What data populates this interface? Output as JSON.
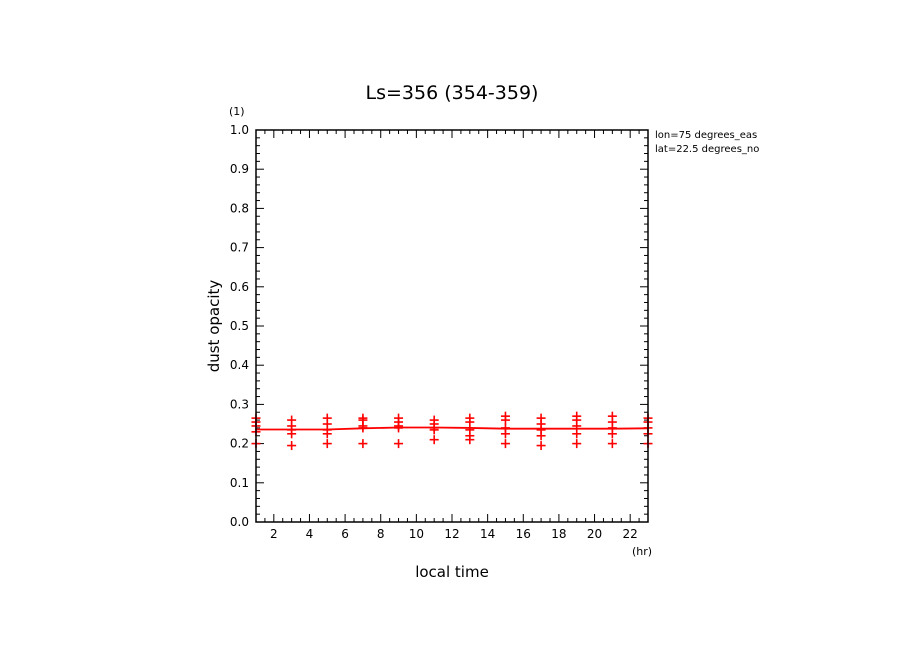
{
  "chart_data": {
    "type": "scatter",
    "title": "Ls=356 (354-359)",
    "xlabel": "local time",
    "ylabel": "dust opacity",
    "x_unit": "(hr)",
    "y_unit": "(1)",
    "xlim": [
      1,
      23
    ],
    "ylim": [
      0.0,
      1.0
    ],
    "x_ticks": [
      2,
      4,
      6,
      8,
      10,
      12,
      14,
      16,
      18,
      20,
      22
    ],
    "x_tick_labels": [
      "2",
      "4",
      "6",
      "8",
      "10",
      "12",
      "14",
      "16",
      "18",
      "20",
      "22"
    ],
    "y_ticks": [
      0.0,
      0.1,
      0.2,
      0.3,
      0.4,
      0.5,
      0.6,
      0.7,
      0.8,
      0.9,
      1.0
    ],
    "y_tick_labels": [
      "0.0",
      "0.1",
      "0.2",
      "0.3",
      "0.4",
      "0.5",
      "0.6",
      "0.7",
      "0.8",
      "0.9",
      "1.0"
    ],
    "annotations": [
      "lon=75 degrees_eas",
      "lat=22.5 degrees_no"
    ],
    "color": "#ff0000",
    "series": [
      {
        "type": "scatter",
        "marker": "+",
        "points": [
          {
            "x": 1,
            "y": 0.265
          },
          {
            "x": 1,
            "y": 0.255
          },
          {
            "x": 1,
            "y": 0.245
          },
          {
            "x": 1,
            "y": 0.23
          },
          {
            "x": 1,
            "y": 0.2
          },
          {
            "x": 3,
            "y": 0.26
          },
          {
            "x": 3,
            "y": 0.245
          },
          {
            "x": 3,
            "y": 0.235
          },
          {
            "x": 3,
            "y": 0.225
          },
          {
            "x": 3,
            "y": 0.195
          },
          {
            "x": 5,
            "y": 0.265
          },
          {
            "x": 5,
            "y": 0.25
          },
          {
            "x": 5,
            "y": 0.235
          },
          {
            "x": 5,
            "y": 0.225
          },
          {
            "x": 5,
            "y": 0.2
          },
          {
            "x": 7,
            "y": 0.265
          },
          {
            "x": 7,
            "y": 0.26
          },
          {
            "x": 7,
            "y": 0.245
          },
          {
            "x": 7,
            "y": 0.24
          },
          {
            "x": 7,
            "y": 0.2
          },
          {
            "x": 9,
            "y": 0.265
          },
          {
            "x": 9,
            "y": 0.255
          },
          {
            "x": 9,
            "y": 0.245
          },
          {
            "x": 9,
            "y": 0.24
          },
          {
            "x": 9,
            "y": 0.2
          },
          {
            "x": 11,
            "y": 0.26
          },
          {
            "x": 11,
            "y": 0.25
          },
          {
            "x": 11,
            "y": 0.24
          },
          {
            "x": 11,
            "y": 0.235
          },
          {
            "x": 11,
            "y": 0.21
          },
          {
            "x": 13,
            "y": 0.265
          },
          {
            "x": 13,
            "y": 0.255
          },
          {
            "x": 13,
            "y": 0.235
          },
          {
            "x": 13,
            "y": 0.22
          },
          {
            "x": 13,
            "y": 0.21
          },
          {
            "x": 15,
            "y": 0.27
          },
          {
            "x": 15,
            "y": 0.26
          },
          {
            "x": 15,
            "y": 0.24
          },
          {
            "x": 15,
            "y": 0.225
          },
          {
            "x": 15,
            "y": 0.2
          },
          {
            "x": 17,
            "y": 0.265
          },
          {
            "x": 17,
            "y": 0.25
          },
          {
            "x": 17,
            "y": 0.235
          },
          {
            "x": 17,
            "y": 0.22
          },
          {
            "x": 17,
            "y": 0.195
          },
          {
            "x": 19,
            "y": 0.27
          },
          {
            "x": 19,
            "y": 0.26
          },
          {
            "x": 19,
            "y": 0.245
          },
          {
            "x": 19,
            "y": 0.225
          },
          {
            "x": 19,
            "y": 0.2
          },
          {
            "x": 21,
            "y": 0.27
          },
          {
            "x": 21,
            "y": 0.255
          },
          {
            "x": 21,
            "y": 0.24
          },
          {
            "x": 21,
            "y": 0.225
          },
          {
            "x": 21,
            "y": 0.2
          },
          {
            "x": 23,
            "y": 0.265
          },
          {
            "x": 23,
            "y": 0.255
          },
          {
            "x": 23,
            "y": 0.24
          },
          {
            "x": 23,
            "y": 0.225
          },
          {
            "x": 23,
            "y": 0.2
          }
        ]
      },
      {
        "type": "line",
        "x": [
          1,
          3,
          5,
          7,
          9,
          11,
          13,
          15,
          17,
          19,
          21,
          23
        ],
        "y": [
          0.236,
          0.236,
          0.236,
          0.239,
          0.241,
          0.241,
          0.24,
          0.238,
          0.238,
          0.238,
          0.238,
          0.239
        ]
      }
    ],
    "grid": false,
    "legend": "none"
  }
}
